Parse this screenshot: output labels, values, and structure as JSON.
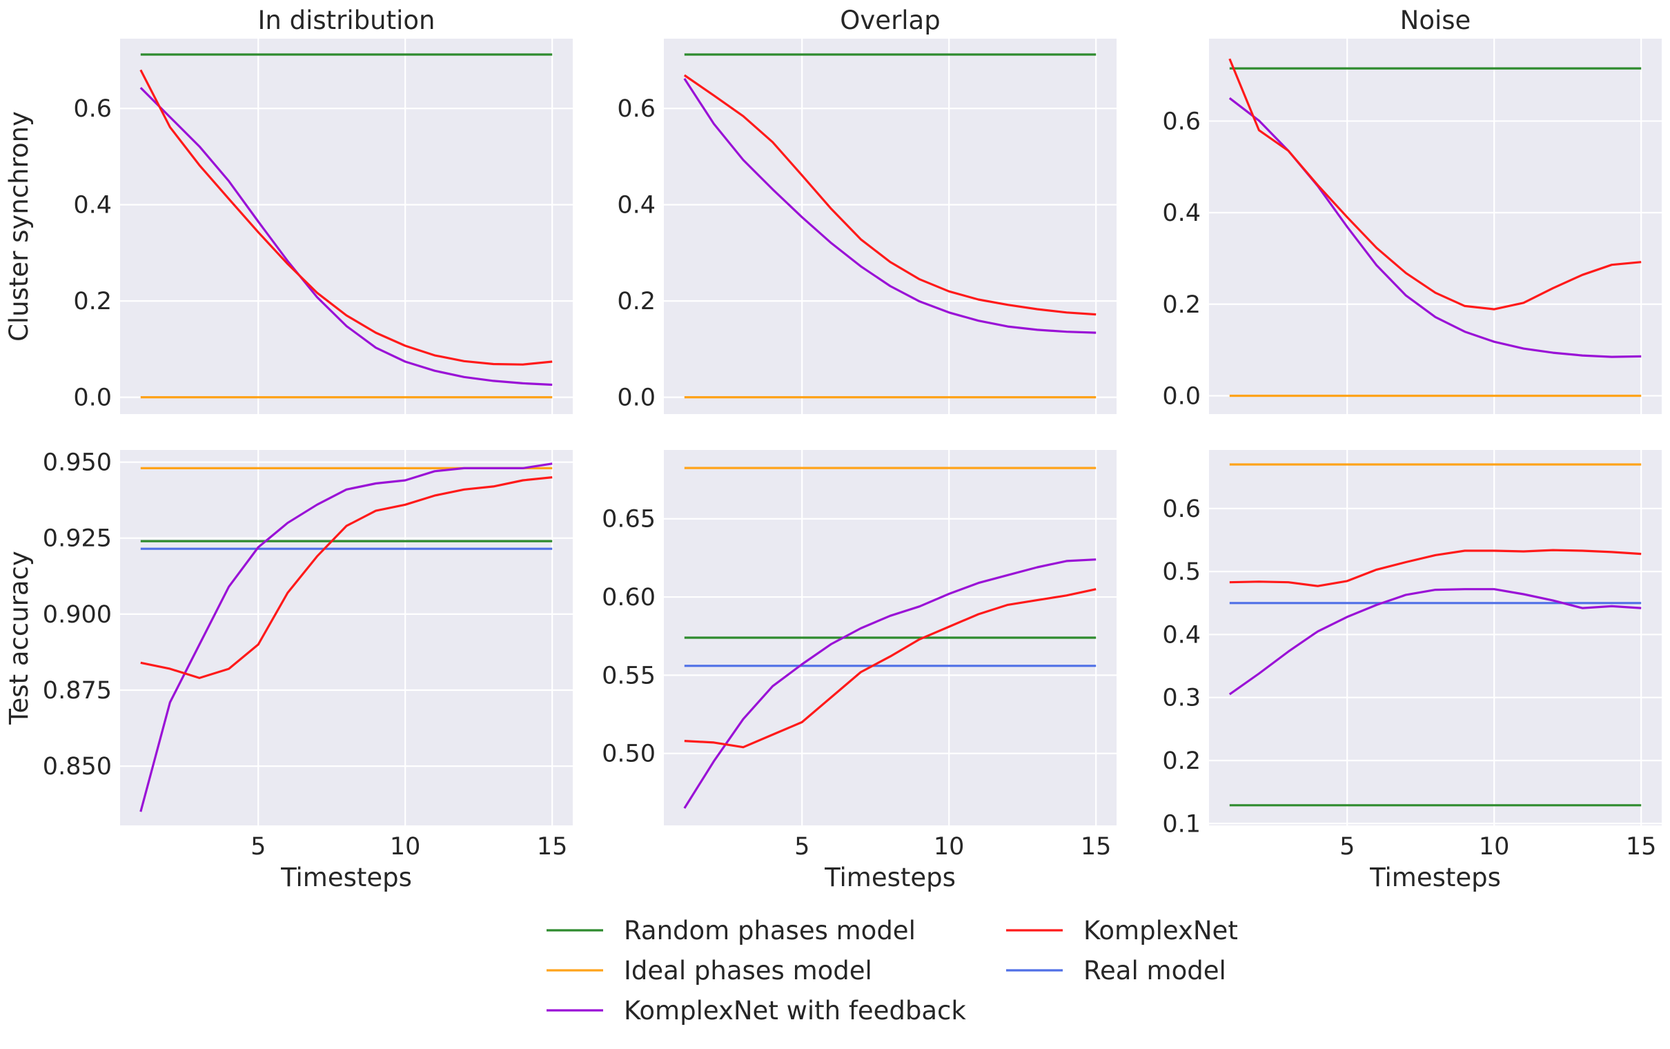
{
  "figure": {
    "legend": [
      {
        "label": "Random phases model",
        "color": "#2e8b2e"
      },
      {
        "label": "Ideal phases model",
        "color": "#ffa31a"
      },
      {
        "label": "KomplexNet with feedback",
        "color": "#9a12d6"
      },
      {
        "label": "KomplexNet",
        "color": "#ff1a1a"
      },
      {
        "label": "Real model",
        "color": "#4f6fe6"
      }
    ]
  },
  "chart_data": [
    {
      "type": "line",
      "title": "In distribution",
      "xlabel": "",
      "ylabel": "Cluster synchrony",
      "xlim": [
        0.3,
        15.7
      ],
      "ylim": [
        -0.035,
        0.745
      ],
      "xticks": [
        5,
        10,
        15
      ],
      "xtick_labels": [
        "",
        "",
        ""
      ],
      "yticks": [
        0.0,
        0.2,
        0.4,
        0.6
      ],
      "ytick_labels": [
        "0.0",
        "0.2",
        "0.4",
        "0.6"
      ],
      "series": [
        {
          "name": "Random phases model",
          "color": "#2e8b2e",
          "x": [
            1,
            15
          ],
          "y": [
            0.712,
            0.712
          ]
        },
        {
          "name": "Ideal phases model",
          "color": "#ffa31a",
          "x": [
            1,
            15
          ],
          "y": [
            0.0,
            0.0
          ]
        },
        {
          "name": "KomplexNet with feedback",
          "color": "#9a12d6",
          "x": [
            1,
            2,
            3,
            4,
            5,
            6,
            7,
            8,
            9,
            10,
            11,
            12,
            13,
            14,
            15
          ],
          "y": [
            0.643,
            0.582,
            0.521,
            0.449,
            0.365,
            0.283,
            0.208,
            0.148,
            0.103,
            0.074,
            0.055,
            0.042,
            0.034,
            0.029,
            0.026
          ]
        },
        {
          "name": "KomplexNet",
          "color": "#ff1a1a",
          "x": [
            1,
            2,
            3,
            4,
            5,
            6,
            7,
            8,
            9,
            10,
            11,
            12,
            13,
            14,
            15
          ],
          "y": [
            0.68,
            0.561,
            0.482,
            0.412,
            0.343,
            0.277,
            0.217,
            0.17,
            0.134,
            0.107,
            0.087,
            0.075,
            0.069,
            0.068,
            0.074
          ]
        }
      ]
    },
    {
      "type": "line",
      "title": "Overlap",
      "xlabel": "",
      "ylabel": "",
      "xlim": [
        0.3,
        15.7
      ],
      "ylim": [
        -0.035,
        0.745
      ],
      "xticks": [
        5,
        10,
        15
      ],
      "xtick_labels": [
        "",
        "",
        ""
      ],
      "yticks": [
        0.0,
        0.2,
        0.4,
        0.6
      ],
      "ytick_labels": [
        "0.0",
        "0.2",
        "0.4",
        "0.6"
      ],
      "series": [
        {
          "name": "Random phases model",
          "color": "#2e8b2e",
          "x": [
            1,
            15
          ],
          "y": [
            0.712,
            0.712
          ]
        },
        {
          "name": "Ideal phases model",
          "color": "#ffa31a",
          "x": [
            1,
            15
          ],
          "y": [
            0.0,
            0.0
          ]
        },
        {
          "name": "KomplexNet with feedback",
          "color": "#9a12d6",
          "x": [
            1,
            2,
            3,
            4,
            5,
            6,
            7,
            8,
            9,
            10,
            11,
            12,
            13,
            14,
            15
          ],
          "y": [
            0.662,
            0.568,
            0.493,
            0.432,
            0.374,
            0.32,
            0.272,
            0.231,
            0.199,
            0.176,
            0.159,
            0.147,
            0.14,
            0.136,
            0.134
          ]
        },
        {
          "name": "KomplexNet",
          "color": "#ff1a1a",
          "x": [
            1,
            2,
            3,
            4,
            5,
            6,
            7,
            8,
            9,
            10,
            11,
            12,
            13,
            14,
            15
          ],
          "y": [
            0.669,
            0.627,
            0.584,
            0.53,
            0.461,
            0.391,
            0.328,
            0.281,
            0.245,
            0.22,
            0.203,
            0.192,
            0.183,
            0.176,
            0.172
          ]
        }
      ]
    },
    {
      "type": "line",
      "title": "Noise",
      "xlabel": "",
      "ylabel": "",
      "xlim": [
        0.3,
        15.7
      ],
      "ylim": [
        -0.04,
        0.78
      ],
      "xticks": [
        5,
        10,
        15
      ],
      "xtick_labels": [
        "",
        "",
        ""
      ],
      "yticks": [
        0.0,
        0.2,
        0.4,
        0.6
      ],
      "ytick_labels": [
        "0.0",
        "0.2",
        "0.4",
        "0.6"
      ],
      "series": [
        {
          "name": "Random phases model",
          "color": "#2e8b2e",
          "x": [
            1,
            15
          ],
          "y": [
            0.715,
            0.715
          ]
        },
        {
          "name": "Ideal phases model",
          "color": "#ffa31a",
          "x": [
            1,
            15
          ],
          "y": [
            0.0,
            0.0
          ]
        },
        {
          "name": "KomplexNet with feedback",
          "color": "#9a12d6",
          "x": [
            1,
            2,
            3,
            4,
            5,
            6,
            7,
            8,
            9,
            10,
            11,
            12,
            13,
            14,
            15
          ],
          "y": [
            0.65,
            0.601,
            0.535,
            0.458,
            0.369,
            0.285,
            0.219,
            0.172,
            0.14,
            0.118,
            0.103,
            0.094,
            0.088,
            0.085,
            0.086
          ]
        },
        {
          "name": "KomplexNet",
          "color": "#ff1a1a",
          "x": [
            1,
            2,
            3,
            4,
            5,
            6,
            7,
            8,
            9,
            10,
            11,
            12,
            13,
            14,
            15
          ],
          "y": [
            0.736,
            0.58,
            0.535,
            0.46,
            0.39,
            0.323,
            0.268,
            0.225,
            0.196,
            0.189,
            0.203,
            0.235,
            0.264,
            0.286,
            0.292
          ]
        }
      ]
    },
    {
      "type": "line",
      "title": "",
      "xlabel": "Timesteps",
      "ylabel": "Test accuracy",
      "xlim": [
        0.3,
        15.7
      ],
      "ylim": [
        0.8305,
        0.954
      ],
      "xticks": [
        5,
        10,
        15
      ],
      "xtick_labels": [
        "5",
        "10",
        "15"
      ],
      "yticks": [
        0.85,
        0.875,
        0.9,
        0.925,
        0.95
      ],
      "ytick_labels": [
        "0.850",
        "0.875",
        "0.900",
        "0.925",
        "0.950"
      ],
      "series": [
        {
          "name": "Random phases model",
          "color": "#2e8b2e",
          "x": [
            1,
            15
          ],
          "y": [
            0.924,
            0.924
          ]
        },
        {
          "name": "Ideal phases model",
          "color": "#ffa31a",
          "x": [
            1,
            15
          ],
          "y": [
            0.948,
            0.948
          ]
        },
        {
          "name": "Real model",
          "color": "#4f6fe6",
          "x": [
            1,
            15
          ],
          "y": [
            0.9215,
            0.9215
          ]
        },
        {
          "name": "KomplexNet with feedback",
          "color": "#9a12d6",
          "x": [
            1,
            2,
            3,
            4,
            5,
            6,
            7,
            8,
            9,
            10,
            11,
            12,
            13,
            14,
            15
          ],
          "y": [
            0.835,
            0.871,
            0.89,
            0.909,
            0.922,
            0.93,
            0.936,
            0.941,
            0.943,
            0.944,
            0.947,
            0.948,
            0.948,
            0.948,
            0.9495
          ]
        },
        {
          "name": "KomplexNet",
          "color": "#ff1a1a",
          "x": [
            1,
            2,
            3,
            4,
            5,
            6,
            7,
            8,
            9,
            10,
            11,
            12,
            13,
            14,
            15
          ],
          "y": [
            0.884,
            0.882,
            0.879,
            0.882,
            0.89,
            0.907,
            0.919,
            0.929,
            0.934,
            0.936,
            0.939,
            0.941,
            0.942,
            0.944,
            0.945
          ]
        }
      ]
    },
    {
      "type": "line",
      "title": "",
      "xlabel": "Timesteps",
      "ylabel": "",
      "xlim": [
        0.3,
        15.7
      ],
      "ylim": [
        0.454,
        0.694
      ],
      "xticks": [
        5,
        10,
        15
      ],
      "xtick_labels": [
        "5",
        "10",
        "15"
      ],
      "yticks": [
        0.5,
        0.55,
        0.6,
        0.65
      ],
      "ytick_labels": [
        "0.50",
        "0.55",
        "0.60",
        "0.65"
      ],
      "series": [
        {
          "name": "Random phases model",
          "color": "#2e8b2e",
          "x": [
            1,
            15
          ],
          "y": [
            0.574,
            0.574
          ]
        },
        {
          "name": "Ideal phases model",
          "color": "#ffa31a",
          "x": [
            1,
            15
          ],
          "y": [
            0.6825,
            0.6825
          ]
        },
        {
          "name": "Real model",
          "color": "#4f6fe6",
          "x": [
            1,
            15
          ],
          "y": [
            0.556,
            0.556
          ]
        },
        {
          "name": "KomplexNet with feedback",
          "color": "#9a12d6",
          "x": [
            1,
            2,
            3,
            4,
            5,
            6,
            7,
            8,
            9,
            10,
            11,
            12,
            13,
            14,
            15
          ],
          "y": [
            0.465,
            0.495,
            0.522,
            0.543,
            0.557,
            0.57,
            0.58,
            0.588,
            0.594,
            0.602,
            0.609,
            0.614,
            0.619,
            0.623,
            0.624
          ]
        },
        {
          "name": "KomplexNet",
          "color": "#ff1a1a",
          "x": [
            1,
            2,
            3,
            4,
            5,
            6,
            7,
            8,
            9,
            10,
            11,
            12,
            13,
            14,
            15
          ],
          "y": [
            0.508,
            0.507,
            0.504,
            0.512,
            0.52,
            0.536,
            0.552,
            0.562,
            0.573,
            0.581,
            0.589,
            0.595,
            0.598,
            0.601,
            0.605
          ]
        }
      ]
    },
    {
      "type": "line",
      "title": "",
      "xlabel": "Timesteps",
      "ylabel": "",
      "xlim": [
        0.3,
        15.7
      ],
      "ylim": [
        0.097,
        0.693
      ],
      "xticks": [
        5,
        10,
        15
      ],
      "xtick_labels": [
        "5",
        "10",
        "15"
      ],
      "yticks": [
        0.1,
        0.2,
        0.3,
        0.4,
        0.5,
        0.6
      ],
      "ytick_labels": [
        "0.1",
        "0.2",
        "0.3",
        "0.4",
        "0.5",
        "0.6"
      ],
      "series": [
        {
          "name": "Random phases model",
          "color": "#2e8b2e",
          "x": [
            1,
            15
          ],
          "y": [
            0.129,
            0.129
          ]
        },
        {
          "name": "Ideal phases model",
          "color": "#ffa31a",
          "x": [
            1,
            15
          ],
          "y": [
            0.67,
            0.67
          ]
        },
        {
          "name": "Real model",
          "color": "#4f6fe6",
          "x": [
            1,
            15
          ],
          "y": [
            0.45,
            0.45
          ]
        },
        {
          "name": "KomplexNet with feedback",
          "color": "#9a12d6",
          "x": [
            1,
            2,
            3,
            4,
            5,
            6,
            7,
            8,
            9,
            10,
            11,
            12,
            13,
            14,
            15
          ],
          "y": [
            0.305,
            0.338,
            0.373,
            0.405,
            0.428,
            0.447,
            0.463,
            0.471,
            0.472,
            0.472,
            0.464,
            0.454,
            0.442,
            0.445,
            0.442
          ]
        },
        {
          "name": "KomplexNet",
          "color": "#ff1a1a",
          "x": [
            1,
            2,
            3,
            4,
            5,
            6,
            7,
            8,
            9,
            10,
            11,
            12,
            13,
            14,
            15
          ],
          "y": [
            0.483,
            0.484,
            0.483,
            0.477,
            0.485,
            0.503,
            0.515,
            0.526,
            0.533,
            0.533,
            0.532,
            0.534,
            0.533,
            0.531,
            0.528
          ]
        }
      ]
    }
  ]
}
